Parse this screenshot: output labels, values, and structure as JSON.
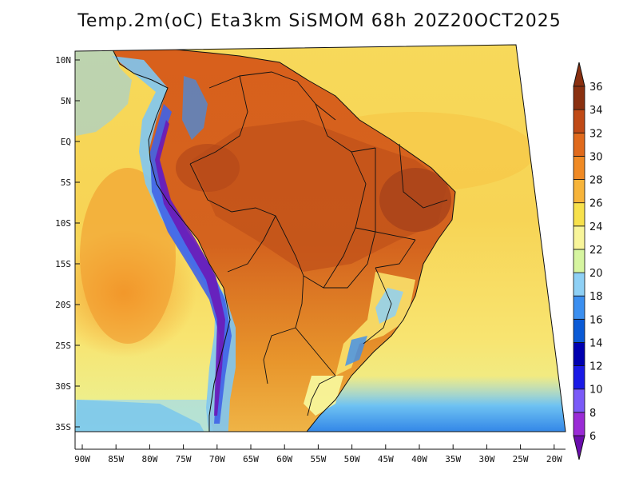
{
  "title": "Temp.2m(oC) Eta3km SiSMOM 68h 20Z20OCT2025",
  "latitude_labels": [
    "10N",
    "5N",
    "EQ",
    "5S",
    "10S",
    "15S",
    "20S",
    "25S",
    "30S",
    "35S"
  ],
  "longitude_labels": [
    "90W",
    "85W",
    "80W",
    "75W",
    "70W",
    "65W",
    "60W",
    "55W",
    "50W",
    "45W",
    "40W",
    "35W",
    "30W",
    "25W",
    "20W"
  ],
  "colorbar": {
    "unit": "oC",
    "levels": [
      "6",
      "8",
      "10",
      "12",
      "14",
      "16",
      "18",
      "20",
      "22",
      "24",
      "26",
      "28",
      "30",
      "32",
      "34",
      "36"
    ],
    "colors": [
      "#6a0dad",
      "#9a2bd6",
      "#7a5af8",
      "#1a1ae6",
      "#0000b0",
      "#0a5ad6",
      "#3b8ff0",
      "#8ed0f5",
      "#d6f5a0",
      "#f8f59a",
      "#f7e14c",
      "#f7b43a",
      "#f08a24",
      "#e06a1c",
      "#c04a16",
      "#8a3010"
    ]
  }
}
